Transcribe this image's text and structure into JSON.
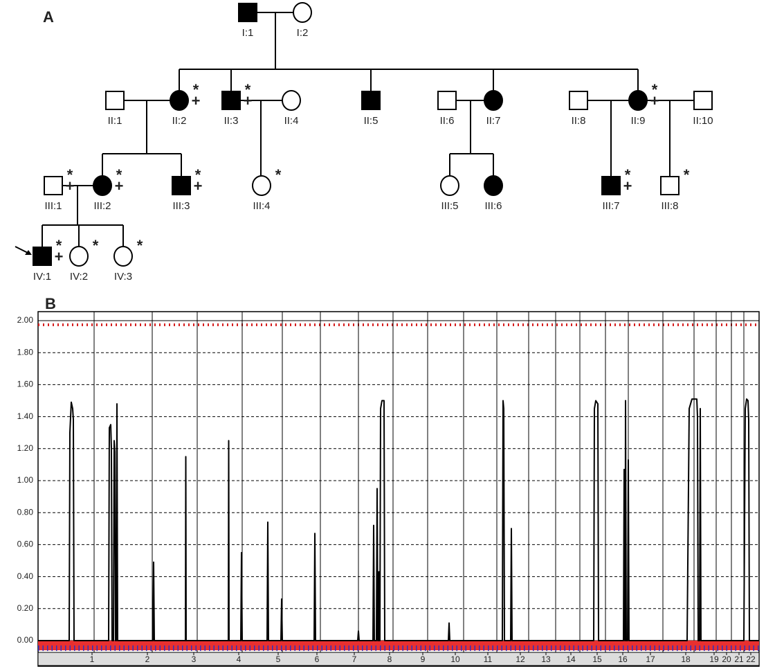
{
  "panel_a": {
    "label": "A",
    "nodes": [
      {
        "label": "I:1",
        "shape": "square",
        "affected": true
      },
      {
        "label": "I:2",
        "shape": "circle",
        "affected": false
      },
      {
        "label": "II:1",
        "shape": "square",
        "affected": false
      },
      {
        "label": "II:2",
        "shape": "circle",
        "affected": true,
        "star": "*",
        "plus": "+"
      },
      {
        "label": "II:3",
        "shape": "square",
        "affected": true,
        "star": "*",
        "plus": "+"
      },
      {
        "label": "II:4",
        "shape": "circle",
        "affected": false
      },
      {
        "label": "II:5",
        "shape": "square",
        "affected": true
      },
      {
        "label": "II:6",
        "shape": "square",
        "affected": false
      },
      {
        "label": "II:7",
        "shape": "circle",
        "affected": true
      },
      {
        "label": "II:8",
        "shape": "square",
        "affected": false
      },
      {
        "label": "II:9",
        "shape": "circle",
        "affected": true,
        "star": "*",
        "plus": "+"
      },
      {
        "label": "II:10",
        "shape": "square",
        "affected": false
      },
      {
        "label": "III:1",
        "shape": "square",
        "affected": false,
        "star": "*",
        "plus": "+"
      },
      {
        "label": "III:2",
        "shape": "circle",
        "affected": true,
        "star": "*",
        "plus": "+"
      },
      {
        "label": "III:3",
        "shape": "square",
        "affected": true,
        "star": "*",
        "plus": "+"
      },
      {
        "label": "III:4",
        "shape": "circle",
        "affected": false,
        "star": "*"
      },
      {
        "label": "III:5",
        "shape": "circle",
        "affected": false
      },
      {
        "label": "III:6",
        "shape": "circle",
        "affected": true
      },
      {
        "label": "III:7",
        "shape": "square",
        "affected": true,
        "star": "*",
        "plus": "+"
      },
      {
        "label": "III:8",
        "shape": "square",
        "affected": false,
        "star": "*"
      },
      {
        "label": "IV:1",
        "shape": "square",
        "affected": true,
        "star": "*",
        "plus": "+"
      },
      {
        "label": "IV:2",
        "shape": "circle",
        "affected": false,
        "star": "*"
      },
      {
        "label": "IV:3",
        "shape": "circle",
        "affected": false,
        "star": "*"
      }
    ]
  },
  "chart_data": {
    "type": "line",
    "label": "B",
    "color": "#000000",
    "grid": true,
    "xlim": [
      0,
      1042
    ],
    "boundaries": [
      81,
      165,
      230,
      295,
      353,
      408,
      463,
      513,
      563,
      615,
      663,
      709,
      748,
      783,
      820,
      853,
      903,
      948,
      980,
      1002,
      1020
    ],
    "xticks": [
      {
        "value": 78,
        "label": "1"
      },
      {
        "value": 158,
        "label": "2"
      },
      {
        "value": 225,
        "label": "3"
      },
      {
        "value": 290,
        "label": "4"
      },
      {
        "value": 347,
        "label": "5"
      },
      {
        "value": 403,
        "label": "6"
      },
      {
        "value": 457,
        "label": "7"
      },
      {
        "value": 508,
        "label": "8"
      },
      {
        "value": 556,
        "label": "9"
      },
      {
        "value": 603,
        "label": "10"
      },
      {
        "value": 650,
        "label": "11"
      },
      {
        "value": 697,
        "label": "12"
      },
      {
        "value": 734,
        "label": "13"
      },
      {
        "value": 770,
        "label": "14"
      },
      {
        "value": 808,
        "label": "15"
      },
      {
        "value": 845,
        "label": "16"
      },
      {
        "value": 885,
        "label": "17"
      },
      {
        "value": 936,
        "label": "18"
      },
      {
        "value": 977,
        "label": "19"
      },
      {
        "value": 995,
        "label": "20"
      },
      {
        "value": 1013,
        "label": "21"
      },
      {
        "value": 1030,
        "label": "22"
      }
    ],
    "ylim": [
      0,
      2
    ],
    "yticks": [
      {
        "value": 0,
        "label": "0.00"
      },
      {
        "value": 0.2,
        "label": "0.20"
      },
      {
        "value": 0.4,
        "label": "0.40"
      },
      {
        "value": 0.6,
        "label": "0.60"
      },
      {
        "value": 0.8,
        "label": "0.80"
      },
      {
        "value": 1,
        "label": "1.00"
      },
      {
        "value": 1.2,
        "label": "1.20"
      },
      {
        "value": 1.4,
        "label": "1.40"
      },
      {
        "value": 1.6,
        "label": "1.60"
      },
      {
        "value": 1.8,
        "label": "1.80"
      },
      {
        "value": 2,
        "label": "2.00"
      }
    ],
    "x": [
      0,
      45,
      46,
      48,
      50,
      51,
      52,
      102,
      103,
      105,
      106,
      107,
      109,
      110,
      111,
      112,
      113,
      114,
      115,
      166,
      167,
      168,
      213,
      213.5,
      214,
      275,
      275.5,
      276,
      293,
      294,
      295,
      331,
      332,
      333,
      351,
      352,
      353,
      399,
      400,
      401,
      462,
      463,
      464,
      484,
      485,
      486,
      489,
      490,
      491,
      492,
      492.5,
      493,
      494,
      495,
      497,
      500,
      501,
      593,
      594,
      595,
      671,
      672,
      673,
      674,
      683,
      684,
      685,
      803,
      804,
      806,
      809,
      810,
      846,
      847,
      848,
      848.5,
      849,
      850,
      852,
      853,
      854,
      938,
      941,
      945,
      952,
      953,
      954,
      956,
      957,
      958,
      1020,
      1022,
      1024,
      1026,
      1027,
      1028,
      1042
    ],
    "values": [
      0,
      0,
      1.3,
      1.49,
      1.45,
      1.38,
      0,
      0,
      1.33,
      1.35,
      1.2,
      0,
      0,
      1.25,
      1.18,
      0,
      0,
      1.48,
      0,
      0,
      0.49,
      0,
      0,
      1.15,
      0,
      0,
      1.25,
      0,
      0,
      0.55,
      0,
      0,
      0.74,
      0,
      0,
      0.26,
      0,
      0,
      0.67,
      0,
      0,
      0.06,
      0,
      0,
      0.72,
      0,
      0,
      0.95,
      0,
      0,
      0.43,
      0,
      0,
      1.45,
      1.5,
      1.5,
      0,
      0,
      0.11,
      0,
      0,
      1.5,
      1.45,
      0,
      0,
      0.7,
      0,
      0,
      1.45,
      1.5,
      1.48,
      0,
      0,
      1.07,
      0,
      0,
      1.5,
      0,
      0,
      1.13,
      0,
      0,
      1.45,
      1.51,
      1.51,
      1.4,
      0,
      0,
      1.45,
      0,
      0,
      1.45,
      1.51,
      1.5,
      1.38,
      0,
      0
    ]
  }
}
